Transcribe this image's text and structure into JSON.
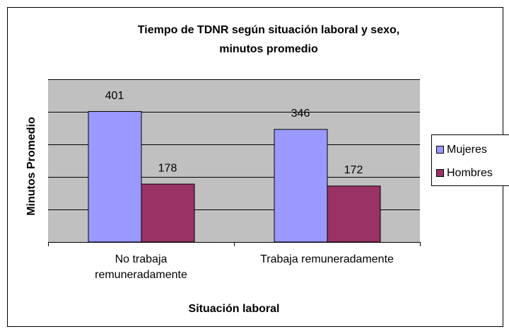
{
  "chart_data": {
    "type": "bar",
    "title": [
      "Tiempo de TDNR según situación laboral y sexo,",
      "minutos promedio"
    ],
    "x_label": "Situación laboral",
    "y_label": "Minutos Promedio",
    "categories": [
      "No trabaja remuneradamente",
      "Trabaja remuneradamente"
    ],
    "series": [
      {
        "name": "Mujeres",
        "color": "#9999ff",
        "values": [
          401,
          346
        ]
      },
      {
        "name": "Hombres",
        "color": "#993366",
        "values": [
          178,
          172
        ]
      }
    ],
    "ylim": [
      0,
      500
    ],
    "yticks": [
      0,
      100,
      200,
      300,
      400,
      500
    ],
    "grid": true,
    "legend": "right"
  }
}
